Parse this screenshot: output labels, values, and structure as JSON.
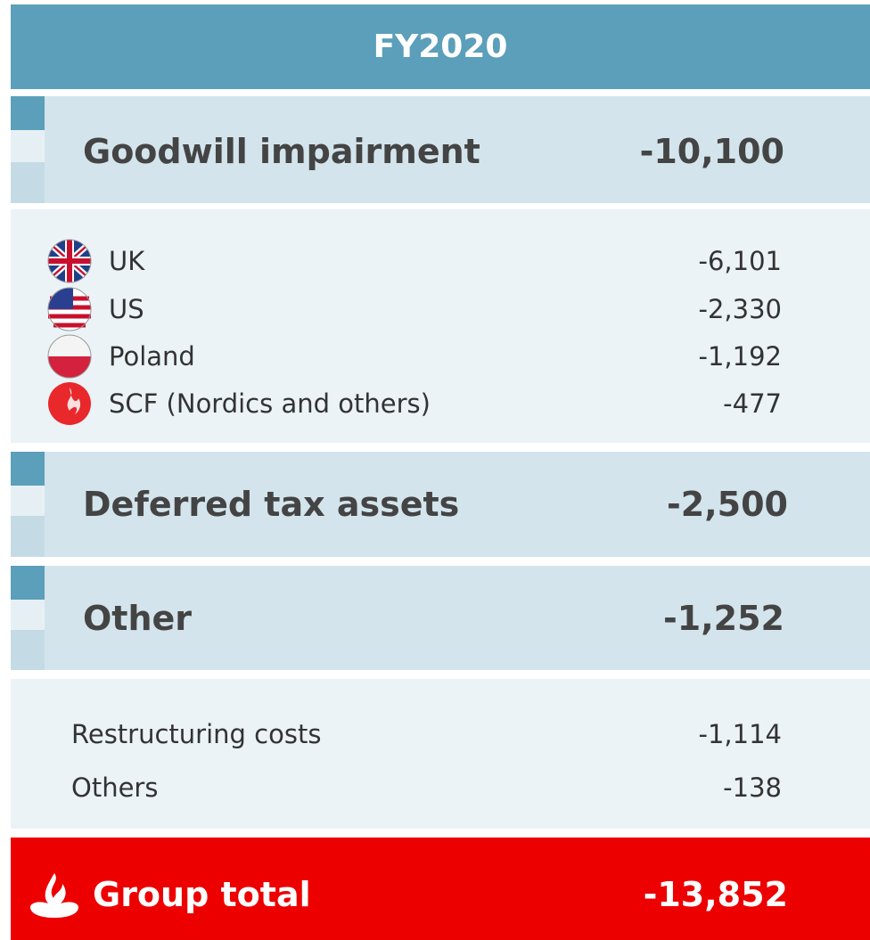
{
  "header": {
    "title": "FY2020"
  },
  "sections": [
    {
      "label": "Goodwill impairment",
      "value": "-10,100",
      "items": [
        {
          "label": "UK",
          "value": "-6,101"
        },
        {
          "label": "US",
          "value": "-2,330"
        },
        {
          "label": "Poland",
          "value": "-1,192"
        },
        {
          "label": "SCF (Nordics and others)",
          "value": "-477"
        }
      ]
    },
    {
      "label": "Deferred tax assets",
      "value": "-2,500"
    },
    {
      "label": "Other",
      "value": "-1,252",
      "items": [
        {
          "label": "Restructuring costs",
          "value": "-1,114"
        },
        {
          "label": "Others",
          "value": "-138"
        }
      ]
    }
  ],
  "total": {
    "label": "Group total",
    "value": "-13,852"
  }
}
